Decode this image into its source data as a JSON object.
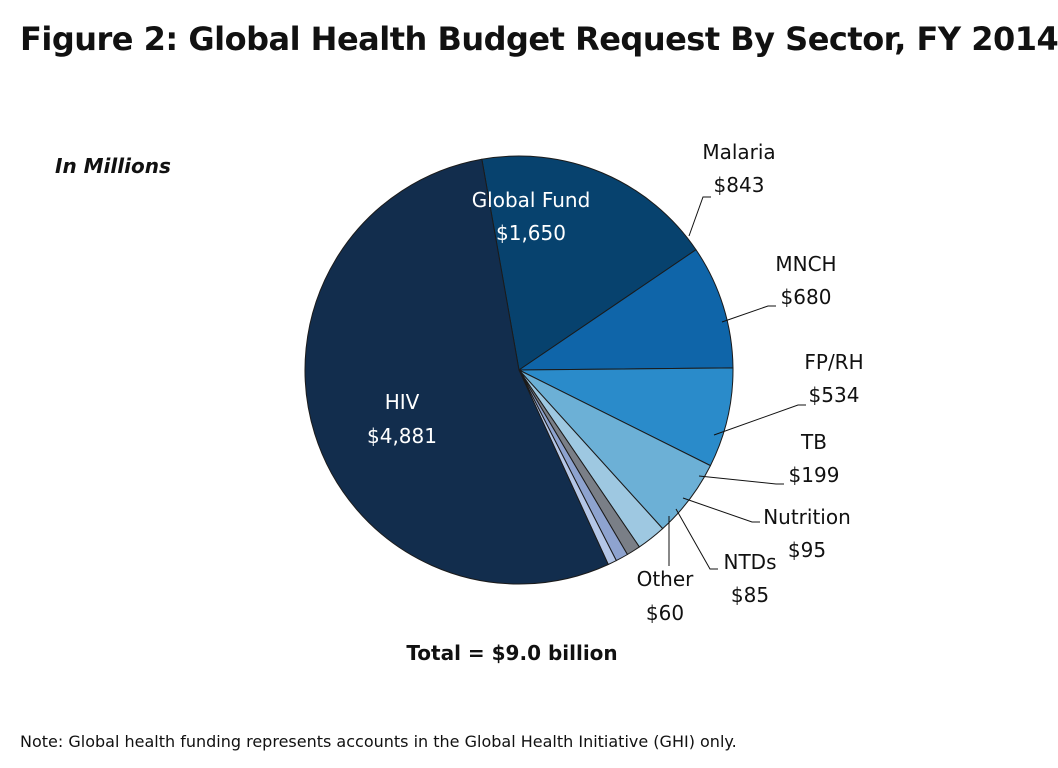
{
  "title": "Figure 2: Global Health Budget Request By Sector, FY 2014",
  "units_label": "In Millions",
  "total_label": "Total = $9.0 billion",
  "note": "Note: Global health funding represents accounts in the Global Health Initiative (GHI) only.",
  "chart_data": {
    "type": "pie",
    "title": "Figure 2: Global Health Budget Request By Sector, FY 2014",
    "unit": "In Millions",
    "total": "Total = $9.0 billion",
    "start": "top, clockwise",
    "slices": [
      {
        "label": "Global Fund",
        "value": 1650,
        "value_label": "$1,650",
        "color": "#07426e",
        "label_color": "#ffffff"
      },
      {
        "label": "Malaria",
        "value": 843,
        "value_label": "$843",
        "color": "#0f65a9",
        "label_color": "#111111"
      },
      {
        "label": "MNCH",
        "value": 680,
        "value_label": "$680",
        "color": "#2a8bca",
        "label_color": "#111111"
      },
      {
        "label": "FP/RH",
        "value": 534,
        "value_label": "$534",
        "color": "#6cb0d6",
        "label_color": "#111111"
      },
      {
        "label": "TB",
        "value": 199,
        "value_label": "$199",
        "color": "#9ec8e1",
        "label_color": "#111111"
      },
      {
        "label": "Nutrition",
        "value": 95,
        "value_label": "$95",
        "color": "#7a7f87",
        "label_color": "#111111"
      },
      {
        "label": "NTDs",
        "value": 85,
        "value_label": "$85",
        "color": "#8ea3cf",
        "label_color": "#111111"
      },
      {
        "label": "Other",
        "value": 60,
        "value_label": "$60",
        "color": "#b4c6e7",
        "label_color": "#111111"
      },
      {
        "label": "HIV",
        "value": 4881,
        "value_label": "$4,881",
        "color": "#122d4d",
        "label_color": "#ffffff"
      }
    ]
  }
}
